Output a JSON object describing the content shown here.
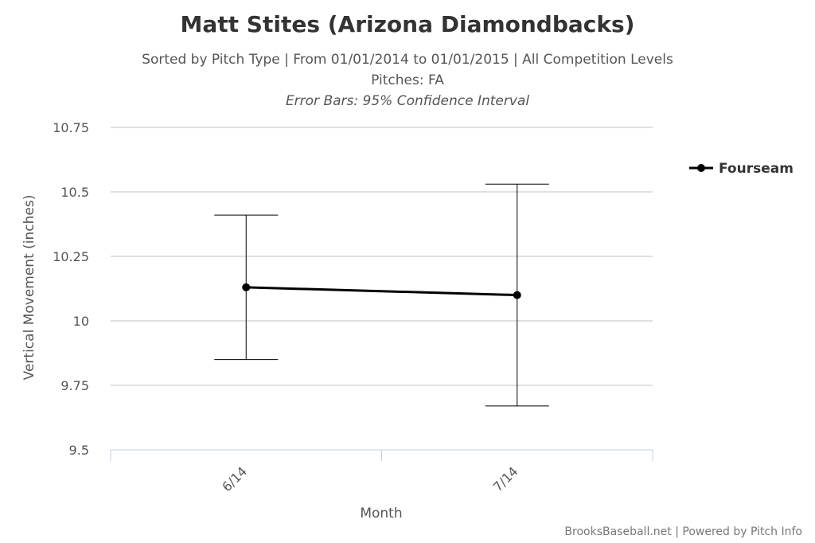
{
  "header": {
    "title": "Matt Stites (Arizona Diamondbacks)",
    "subtitle_line1": "Sorted by Pitch Type | From 01/01/2014 to 01/01/2015 | All Competition Levels",
    "subtitle_line2": "Pitches: FA",
    "subtitle_line3": "Error Bars: 95% Confidence Interval"
  },
  "credits": "BrooksBaseball.net | Powered by Pitch Info",
  "chart_data": {
    "type": "line",
    "title": "Matt Stites (Arizona Diamondbacks)",
    "xlabel": "Month",
    "ylabel": "Vertical Movement (inches)",
    "categories": [
      "6/14",
      "7/14"
    ],
    "ylim": [
      9.5,
      10.75
    ],
    "yticks": [
      "9.5",
      "9.75",
      "10",
      "10.25",
      "10.5",
      "10.75"
    ],
    "grid": true,
    "legend_position": "right",
    "series": [
      {
        "name": "Fourseam",
        "color": "#000000",
        "values": [
          10.13,
          10.1
        ],
        "error_low": [
          9.85,
          9.67
        ],
        "error_high": [
          10.41,
          10.53
        ]
      }
    ]
  }
}
